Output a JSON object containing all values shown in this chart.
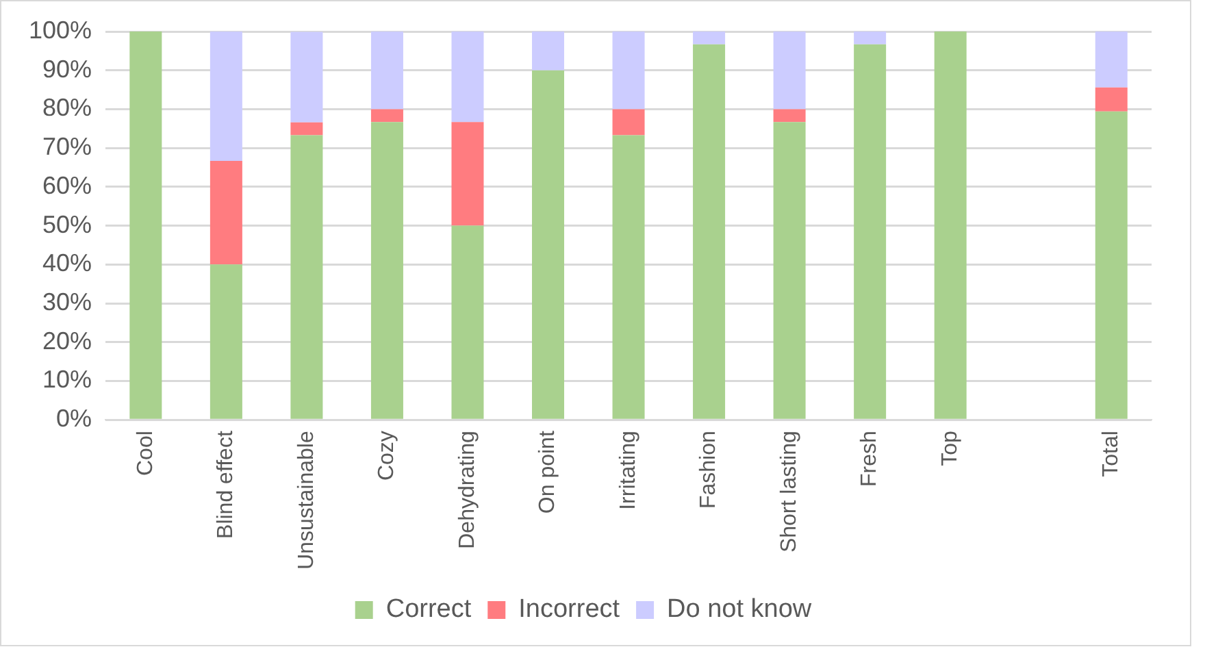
{
  "chart_data": {
    "type": "bar",
    "stacked": true,
    "categories": [
      "Cool",
      "Blind effect",
      "Unsustainable",
      "Cozy",
      "Dehydrating",
      "On point",
      "Irritating",
      "Fashion",
      "Short lasting",
      "Fresh",
      "Top",
      null,
      "Total"
    ],
    "series": [
      {
        "name": "Correct",
        "color": "#a9d18e",
        "values": [
          100,
          40,
          73.3,
          76.7,
          50,
          90,
          73.3,
          96.7,
          76.7,
          96.7,
          100,
          null,
          79.4
        ]
      },
      {
        "name": "Incorrect",
        "color": "#ff7c80",
        "values": [
          0,
          26.7,
          3.3,
          3.3,
          26.7,
          0,
          6.7,
          0,
          3.3,
          0,
          0,
          null,
          6.2
        ]
      },
      {
        "name": "Do not know",
        "color": "#ccccff",
        "values": [
          0,
          33.3,
          23.3,
          20,
          23.3,
          10,
          20,
          3.3,
          20,
          3.3,
          0,
          null,
          14.4
        ]
      }
    ],
    "ylim": [
      0,
      100
    ],
    "yticks": [
      {
        "value": 0,
        "label": "0%"
      },
      {
        "value": 10,
        "label": "10%"
      },
      {
        "value": 20,
        "label": "20%"
      },
      {
        "value": 30,
        "label": "30%"
      },
      {
        "value": 40,
        "label": "40%"
      },
      {
        "value": 50,
        "label": "50%"
      },
      {
        "value": 60,
        "label": "60%"
      },
      {
        "value": 70,
        "label": "70%"
      },
      {
        "value": 80,
        "label": "80%"
      },
      {
        "value": 90,
        "label": "90%"
      },
      {
        "value": 100,
        "label": "100%"
      }
    ],
    "grid": "y",
    "legend": "bottom"
  }
}
